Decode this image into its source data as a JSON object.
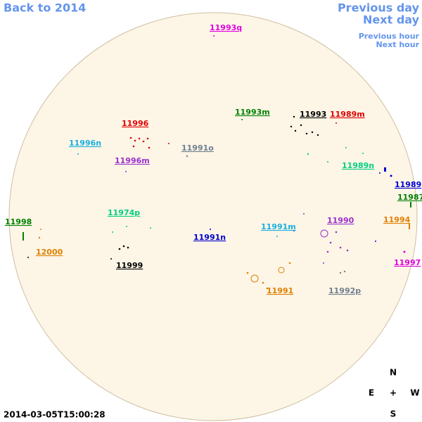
{
  "navigation": {
    "back": "Back to 2014",
    "previous_day": "Previous day",
    "next_day": "Next day",
    "previous_hour": "Previous hour",
    "next_hour": "Next hour"
  },
  "regions": [
    {
      "label": "11993q",
      "color": "#e000e0"
    },
    {
      "label": "11993m",
      "color": "#008000"
    },
    {
      "label": "11993",
      "color": "#000000"
    },
    {
      "label": "11989m",
      "color": "#e00000"
    },
    {
      "label": "11996",
      "color": "#e00000"
    },
    {
      "label": "11996n",
      "color": "#1ab0e0"
    },
    {
      "label": "11991o",
      "color": "#708090"
    },
    {
      "label": "11996m",
      "color": "#9932cc"
    },
    {
      "label": "11989n",
      "color": "#00d080"
    },
    {
      "label": "11989",
      "color": "#0000d0"
    },
    {
      "label": "11987",
      "color": "#008000"
    },
    {
      "label": "11998",
      "color": "#008000"
    },
    {
      "label": "11974p",
      "color": "#00d080"
    },
    {
      "label": "11994",
      "color": "#e08000"
    },
    {
      "label": "11991m",
      "color": "#1ab0e0"
    },
    {
      "label": "11990",
      "color": "#9932cc"
    },
    {
      "label": "11991n",
      "color": "#0000d0"
    },
    {
      "label": "12000",
      "color": "#e08000"
    },
    {
      "label": "11997",
      "color": "#e000e0"
    },
    {
      "label": "11999",
      "color": "#000000"
    },
    {
      "label": "11991",
      "color": "#e08000"
    },
    {
      "label": "11992p",
      "color": "#708090"
    }
  ],
  "compass": {
    "north": "N",
    "east": "E",
    "center": "+",
    "west": "W",
    "south": "S"
  },
  "timestamp": "2014-03-05T15:00:28"
}
